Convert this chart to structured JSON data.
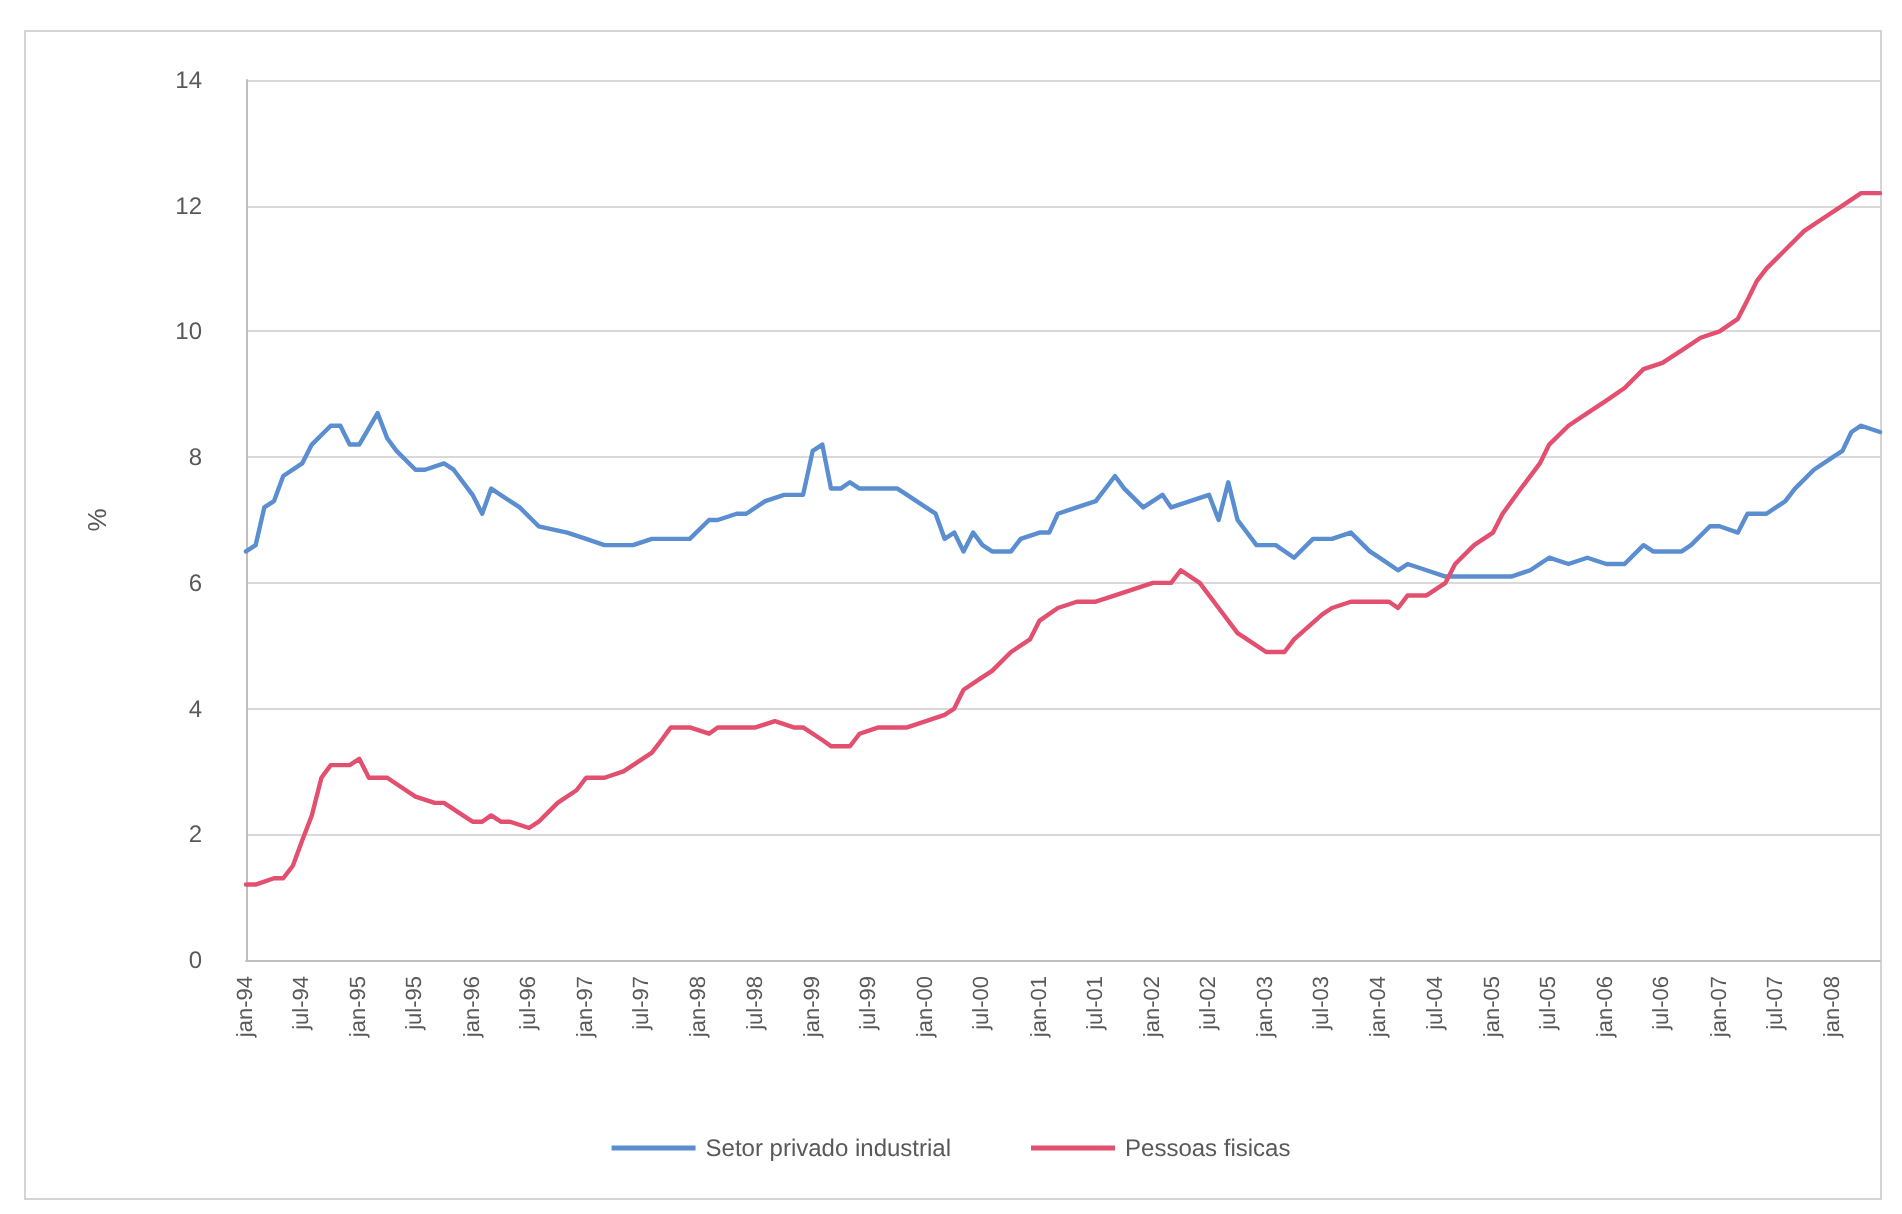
{
  "chart_data": {
    "type": "line",
    "ylabel": "%",
    "xlim": [
      "1994-01",
      "2008-06"
    ],
    "xticks": [
      {
        "value": "1994-01",
        "label": "jan-94"
      },
      {
        "value": "1994-07",
        "label": "jul-94"
      },
      {
        "value": "1995-01",
        "label": "jan-95"
      },
      {
        "value": "1995-07",
        "label": "jul-95"
      },
      {
        "value": "1996-01",
        "label": "jan-96"
      },
      {
        "value": "1996-07",
        "label": "jul-96"
      },
      {
        "value": "1997-01",
        "label": "jan-97"
      },
      {
        "value": "1997-07",
        "label": "jul-97"
      },
      {
        "value": "1998-01",
        "label": "jan-98"
      },
      {
        "value": "1998-07",
        "label": "jul-98"
      },
      {
        "value": "1999-01",
        "label": "jan-99"
      },
      {
        "value": "1999-07",
        "label": "jul-99"
      },
      {
        "value": "2000-01",
        "label": "jan-00"
      },
      {
        "value": "2000-07",
        "label": "jul-00"
      },
      {
        "value": "2001-01",
        "label": "jan-01"
      },
      {
        "value": "2001-07",
        "label": "jul-01"
      },
      {
        "value": "2002-01",
        "label": "jan-02"
      },
      {
        "value": "2002-07",
        "label": "jul-02"
      },
      {
        "value": "2003-01",
        "label": "jan-03"
      },
      {
        "value": "2003-07",
        "label": "jul-03"
      },
      {
        "value": "2004-01",
        "label": "jan-04"
      },
      {
        "value": "2004-07",
        "label": "jul-04"
      },
      {
        "value": "2005-01",
        "label": "jan-05"
      },
      {
        "value": "2005-07",
        "label": "jul-05"
      },
      {
        "value": "2006-01",
        "label": "jan-06"
      },
      {
        "value": "2006-07",
        "label": "jul-06"
      },
      {
        "value": "2007-01",
        "label": "jan-07"
      },
      {
        "value": "2007-07",
        "label": "jul-07"
      },
      {
        "value": "2008-01",
        "label": "jan-08"
      }
    ],
    "ylim": [
      0,
      14
    ],
    "yticks": [
      0,
      2,
      4,
      6,
      8,
      10,
      12,
      14
    ],
    "grid": "y",
    "legend": "bottom",
    "marker": "none",
    "line_style": "solid",
    "series": [
      {
        "name": "Setor privado industrial",
        "color": "#5a8ed0",
        "x": [
          "1994-01",
          "1994-02",
          "1994-03",
          "1994-04",
          "1994-05",
          "1994-07",
          "1994-08",
          "1994-10",
          "1994-11",
          "1994-12",
          "1995-01",
          "1995-03",
          "1995-04",
          "1995-05",
          "1995-07",
          "1995-08",
          "1995-10",
          "1995-11",
          "1996-01",
          "1996-02",
          "1996-03",
          "1996-05",
          "1996-06",
          "1996-08",
          "1996-11",
          "1997-01",
          "1997-03",
          "1997-06",
          "1997-08",
          "1997-09",
          "1997-12",
          "1998-02",
          "1998-03",
          "1998-05",
          "1998-06",
          "1998-08",
          "1998-10",
          "1998-12",
          "1999-01",
          "1999-02",
          "1999-03",
          "1999-04",
          "1999-05",
          "1999-06",
          "1999-10",
          "1999-11",
          "2000-01",
          "2000-02",
          "2000-03",
          "2000-04",
          "2000-05",
          "2000-06",
          "2000-07",
          "2000-08",
          "2000-10",
          "2000-11",
          "2001-01",
          "2001-02",
          "2001-03",
          "2001-05",
          "2001-07",
          "2001-09",
          "2001-10",
          "2001-12",
          "2002-02",
          "2002-03",
          "2002-05",
          "2002-07",
          "2002-08",
          "2002-09",
          "2002-10",
          "2002-12",
          "2003-02",
          "2003-04",
          "2003-06",
          "2003-08",
          "2003-10",
          "2003-12",
          "2004-01",
          "2004-03",
          "2004-04",
          "2004-06",
          "2004-08",
          "2004-11",
          "2005-01",
          "2005-03",
          "2005-05",
          "2005-07",
          "2005-09",
          "2005-11",
          "2006-01",
          "2006-03",
          "2006-05",
          "2006-06",
          "2006-09",
          "2006-10",
          "2006-12",
          "2007-01",
          "2007-03",
          "2007-04",
          "2007-06",
          "2007-08",
          "2007-09",
          "2007-11",
          "2008-01",
          "2008-02",
          "2008-03",
          "2008-04",
          "2008-06"
        ],
        "values": [
          6.5,
          6.6,
          7.2,
          7.3,
          7.7,
          7.9,
          8.2,
          8.5,
          8.5,
          8.2,
          8.2,
          8.7,
          8.3,
          8.1,
          7.8,
          7.8,
          7.9,
          7.8,
          7.4,
          7.1,
          7.5,
          7.3,
          7.2,
          6.9,
          6.8,
          6.7,
          6.6,
          6.6,
          6.7,
          6.7,
          6.7,
          7.0,
          7.0,
          7.1,
          7.1,
          7.3,
          7.4,
          7.4,
          8.1,
          8.2,
          7.5,
          7.5,
          7.6,
          7.5,
          7.5,
          7.4,
          7.2,
          7.1,
          6.7,
          6.8,
          6.5,
          6.8,
          6.6,
          6.5,
          6.5,
          6.7,
          6.8,
          6.8,
          7.1,
          7.2,
          7.3,
          7.7,
          7.5,
          7.2,
          7.4,
          7.2,
          7.3,
          7.4,
          7.0,
          7.6,
          7.0,
          6.6,
          6.6,
          6.4,
          6.7,
          6.7,
          6.8,
          6.5,
          6.4,
          6.2,
          6.3,
          6.2,
          6.1,
          6.1,
          6.1,
          6.1,
          6.2,
          6.4,
          6.3,
          6.4,
          6.3,
          6.3,
          6.6,
          6.5,
          6.5,
          6.6,
          6.9,
          6.9,
          6.8,
          7.1,
          7.1,
          7.3,
          7.5,
          7.8,
          8.0,
          8.1,
          8.4,
          8.5,
          8.4
        ]
      },
      {
        "name": "Pessoas fisicas",
        "color": "#e3506f",
        "x": [
          "1994-01",
          "1994-02",
          "1994-04",
          "1994-05",
          "1994-06",
          "1994-07",
          "1994-08",
          "1994-09",
          "1994-10",
          "1994-12",
          "1995-01",
          "1995-02",
          "1995-04",
          "1995-05",
          "1995-07",
          "1995-09",
          "1995-10",
          "1995-12",
          "1996-01",
          "1996-02",
          "1996-03",
          "1996-04",
          "1996-05",
          "1996-07",
          "1996-08",
          "1996-10",
          "1996-12",
          "1997-01",
          "1997-03",
          "1997-05",
          "1997-06",
          "1997-08",
          "1997-09",
          "1997-10",
          "1997-12",
          "1998-02",
          "1998-03",
          "1998-07",
          "1998-09",
          "1998-11",
          "1998-12",
          "1999-02",
          "1999-03",
          "1999-05",
          "1999-06",
          "1999-08",
          "1999-10",
          "1999-11",
          "2000-01",
          "2000-03",
          "2000-04",
          "2000-05",
          "2000-07",
          "2000-08",
          "2000-10",
          "2000-12",
          "2001-01",
          "2001-03",
          "2001-05",
          "2001-07",
          "2001-09",
          "2001-11",
          "2002-01",
          "2002-03",
          "2002-04",
          "2002-06",
          "2002-08",
          "2002-10",
          "2002-11",
          "2003-01",
          "2003-03",
          "2003-04",
          "2003-07",
          "2003-08",
          "2003-10",
          "2003-12",
          "2004-02",
          "2004-03",
          "2004-04",
          "2004-06",
          "2004-08",
          "2004-09",
          "2004-11",
          "2005-01",
          "2005-02",
          "2005-04",
          "2005-06",
          "2005-07",
          "2005-09",
          "2005-11",
          "2006-01",
          "2006-03",
          "2006-05",
          "2006-07",
          "2006-09",
          "2006-11",
          "2007-01",
          "2007-03",
          "2007-04",
          "2007-05",
          "2007-06",
          "2007-08",
          "2007-10",
          "2007-12",
          "2008-02",
          "2008-04",
          "2008-06"
        ],
        "values": [
          1.2,
          1.2,
          1.3,
          1.3,
          1.5,
          1.9,
          2.3,
          2.9,
          3.1,
          3.1,
          3.2,
          2.9,
          2.9,
          2.8,
          2.6,
          2.5,
          2.5,
          2.3,
          2.2,
          2.2,
          2.3,
          2.2,
          2.2,
          2.1,
          2.2,
          2.5,
          2.7,
          2.9,
          2.9,
          3.0,
          3.1,
          3.3,
          3.5,
          3.7,
          3.7,
          3.6,
          3.7,
          3.7,
          3.8,
          3.7,
          3.7,
          3.5,
          3.4,
          3.4,
          3.6,
          3.7,
          3.7,
          3.7,
          3.8,
          3.9,
          4.0,
          4.3,
          4.5,
          4.6,
          4.9,
          5.1,
          5.4,
          5.6,
          5.7,
          5.7,
          5.8,
          5.9,
          6.0,
          6.0,
          6.2,
          6.0,
          5.6,
          5.2,
          5.1,
          4.9,
          4.9,
          5.1,
          5.5,
          5.6,
          5.7,
          5.7,
          5.7,
          5.6,
          5.8,
          5.8,
          6.0,
          6.3,
          6.6,
          6.8,
          7.1,
          7.5,
          7.9,
          8.2,
          8.5,
          8.7,
          8.9,
          9.1,
          9.4,
          9.5,
          9.7,
          9.9,
          10.0,
          10.2,
          10.5,
          10.8,
          11.0,
          11.3,
          11.6,
          11.8,
          12.0,
          12.2,
          12.2
        ]
      }
    ]
  }
}
